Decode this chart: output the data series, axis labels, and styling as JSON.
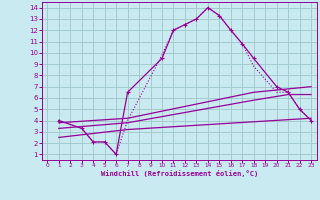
{
  "bg_color": "#c8eaf0",
  "grid_color": "#a0c8c8",
  "line_color": "#990099",
  "xlabel": "Windchill (Refroidissement éolien,°C)",
  "xlim": [
    -0.5,
    23.5
  ],
  "ylim": [
    0.5,
    14.5
  ],
  "xticks": [
    0,
    1,
    2,
    3,
    4,
    5,
    6,
    7,
    8,
    9,
    10,
    11,
    12,
    13,
    14,
    15,
    16,
    17,
    18,
    19,
    20,
    21,
    22,
    23
  ],
  "yticks": [
    1,
    2,
    3,
    4,
    5,
    6,
    7,
    8,
    9,
    10,
    11,
    12,
    13,
    14
  ],
  "curve_main_x": [
    1,
    3,
    4,
    5,
    6,
    7,
    10,
    11,
    12,
    13,
    14,
    15,
    16,
    17,
    18,
    20,
    21,
    22,
    23
  ],
  "curve_main_y": [
    4.0,
    3.3,
    2.1,
    2.1,
    1.0,
    6.5,
    9.5,
    12.0,
    12.5,
    13.0,
    14.0,
    13.3,
    12.0,
    10.8,
    9.5,
    7.0,
    6.5,
    5.0,
    4.0
  ],
  "curve_dot_x": [
    1,
    3,
    4,
    5,
    6,
    7,
    10,
    11,
    12,
    13,
    14,
    15,
    16,
    17,
    18,
    20,
    21,
    22,
    23
  ],
  "curve_dot_y": [
    4.0,
    3.3,
    2.1,
    2.1,
    1.0,
    4.0,
    9.8,
    12.0,
    12.5,
    13.0,
    14.0,
    13.3,
    12.0,
    10.8,
    8.8,
    6.5,
    6.5,
    5.0,
    4.0
  ],
  "line1_x": [
    1,
    7,
    18,
    23
  ],
  "line1_y": [
    3.8,
    4.2,
    6.5,
    7.0
  ],
  "line2_x": [
    1,
    7,
    18,
    21,
    23
  ],
  "line2_y": [
    3.3,
    3.8,
    5.8,
    6.3,
    6.3
  ],
  "line3_x": [
    1,
    7,
    23
  ],
  "line3_y": [
    2.5,
    3.2,
    4.2
  ]
}
